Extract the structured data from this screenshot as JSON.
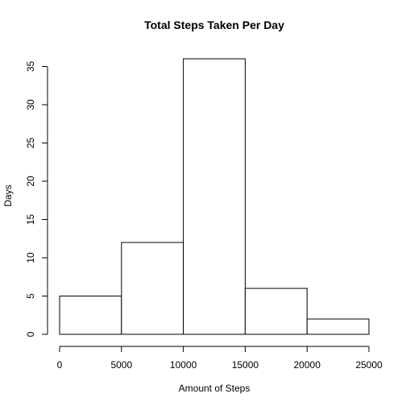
{
  "chart_data": {
    "type": "bar",
    "title": "Total Steps Taken Per Day",
    "xlabel": "Amount of Steps",
    "ylabel": "Days",
    "bins": [
      {
        "from": 0,
        "to": 5000,
        "value": 5
      },
      {
        "from": 5000,
        "to": 10000,
        "value": 12
      },
      {
        "from": 10000,
        "to": 15000,
        "value": 36
      },
      {
        "from": 15000,
        "to": 20000,
        "value": 6
      },
      {
        "from": 20000,
        "to": 25000,
        "value": 2
      }
    ],
    "xlim": [
      0,
      25000
    ],
    "ylim": [
      0,
      36
    ],
    "xticks": [
      0,
      5000,
      10000,
      15000,
      20000,
      25000
    ],
    "yticks": [
      0,
      5,
      10,
      15,
      20,
      25,
      30,
      35
    ],
    "grid": false,
    "legend": "none",
    "bar_fill": "#ffffff",
    "bar_stroke": "#000000"
  }
}
